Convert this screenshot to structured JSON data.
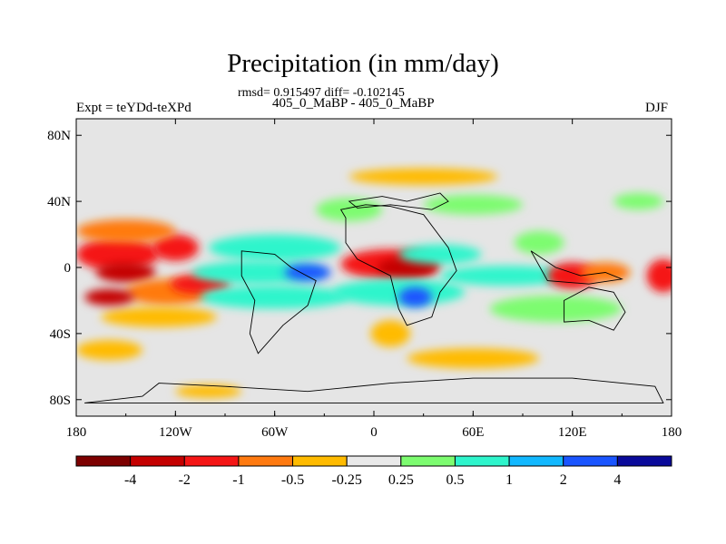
{
  "chart_data": {
    "type": "heatmap",
    "title": "Precipitation (in mm/day)",
    "stats_text": "rmsd= 0.915497 diff= -0.102145",
    "subtitle": "405_0_MaBP - 405_0_MaBP",
    "left_string": "Expt = teYDd-teXPd",
    "right_string": "DJF",
    "x_ticks": [
      {
        "value": -180,
        "label": "180"
      },
      {
        "value": -120,
        "label": "120W"
      },
      {
        "value": -60,
        "label": "60W"
      },
      {
        "value": 0,
        "label": "0"
      },
      {
        "value": 60,
        "label": "60E"
      },
      {
        "value": 120,
        "label": "120E"
      },
      {
        "value": 180,
        "label": "180"
      }
    ],
    "y_ticks": [
      {
        "value": 80,
        "label": "80N"
      },
      {
        "value": 40,
        "label": "40N"
      },
      {
        "value": 0,
        "label": "0"
      },
      {
        "value": -40,
        "label": "40S"
      },
      {
        "value": -80,
        "label": "80S"
      }
    ],
    "xlim": [
      -180,
      180
    ],
    "ylim": [
      -90,
      90
    ],
    "colorbar": {
      "levels": [
        {
          "label": "-4"
        },
        {
          "label": "-2"
        },
        {
          "label": "-1"
        },
        {
          "label": "-0.5"
        },
        {
          "label": "-0.25"
        },
        {
          "label": "0.25"
        },
        {
          "label": "0.5"
        },
        {
          "label": "1"
        },
        {
          "label": "2"
        },
        {
          "label": "4"
        }
      ],
      "colors": [
        "#7d0000",
        "#c40000",
        "#f51616",
        "#ff7a10",
        "#ffbb00",
        "#e9e9e9",
        "#7dfc70",
        "#2ef5cc",
        "#12b8ff",
        "#1a55ff",
        "#0a0a9a"
      ]
    },
    "background_color": "#e5e5e5",
    "blobs": [
      {
        "lon": -155,
        "lat": 8,
        "rlon": 25,
        "rlat": 10,
        "cls": 2
      },
      {
        "lon": -150,
        "lat": -3,
        "rlon": 18,
        "rlat": 6,
        "cls": 1
      },
      {
        "lon": -120,
        "lat": 12,
        "rlon": 14,
        "rlat": 8,
        "cls": 2
      },
      {
        "lon": -150,
        "lat": 22,
        "rlon": 30,
        "rlat": 7,
        "cls": 3
      },
      {
        "lon": -125,
        "lat": -15,
        "rlon": 25,
        "rlat": 8,
        "cls": 3
      },
      {
        "lon": -130,
        "lat": -30,
        "rlon": 35,
        "rlat": 6,
        "cls": 4
      },
      {
        "lon": -105,
        "lat": -10,
        "rlon": 18,
        "rlat": 6,
        "cls": 2
      },
      {
        "lon": -160,
        "lat": -18,
        "rlon": 15,
        "rlat": 5,
        "cls": 1
      },
      {
        "lon": -60,
        "lat": 12,
        "rlon": 40,
        "rlat": 8,
        "cls": 7
      },
      {
        "lon": -70,
        "lat": -3,
        "rlon": 40,
        "rlat": 7,
        "cls": 7
      },
      {
        "lon": -60,
        "lat": -18,
        "rlon": 45,
        "rlat": 7,
        "cls": 7
      },
      {
        "lon": -40,
        "lat": -3,
        "rlon": 14,
        "rlat": 5,
        "cls": 9
      },
      {
        "lon": -15,
        "lat": 35,
        "rlon": 20,
        "rlat": 7,
        "cls": 6
      },
      {
        "lon": 10,
        "lat": 2,
        "rlon": 30,
        "rlat": 9,
        "cls": 2
      },
      {
        "lon": 20,
        "lat": 0,
        "rlon": 18,
        "rlat": 6,
        "cls": 1
      },
      {
        "lon": 15,
        "lat": -15,
        "rlon": 40,
        "rlat": 8,
        "cls": 7
      },
      {
        "lon": 25,
        "lat": -18,
        "rlon": 10,
        "rlat": 6,
        "cls": 9
      },
      {
        "lon": 10,
        "lat": -40,
        "rlon": 12,
        "rlat": 8,
        "cls": 4
      },
      {
        "lon": 60,
        "lat": 38,
        "rlon": 30,
        "rlat": 6,
        "cls": 6
      },
      {
        "lon": 40,
        "lat": 8,
        "rlon": 25,
        "rlat": 6,
        "cls": 7
      },
      {
        "lon": 80,
        "lat": -5,
        "rlon": 40,
        "rlat": 6,
        "cls": 7
      },
      {
        "lon": 120,
        "lat": -5,
        "rlon": 15,
        "rlat": 8,
        "cls": 2
      },
      {
        "lon": 140,
        "lat": -3,
        "rlon": 15,
        "rlat": 6,
        "cls": 3
      },
      {
        "lon": 175,
        "lat": -5,
        "rlon": 10,
        "rlat": 10,
        "cls": 2
      },
      {
        "lon": 100,
        "lat": 15,
        "rlon": 15,
        "rlat": 7,
        "cls": 6
      },
      {
        "lon": 110,
        "lat": -25,
        "rlon": 40,
        "rlat": 8,
        "cls": 6
      },
      {
        "lon": 60,
        "lat": -55,
        "rlon": 40,
        "rlat": 6,
        "cls": 4
      },
      {
        "lon": 30,
        "lat": 55,
        "rlon": 45,
        "rlat": 5,
        "cls": 4
      },
      {
        "lon": -160,
        "lat": -50,
        "rlon": 20,
        "rlat": 6,
        "cls": 4
      },
      {
        "lon": -100,
        "lat": -75,
        "rlon": 20,
        "rlat": 4,
        "cls": 4
      },
      {
        "lon": 160,
        "lat": 40,
        "rlon": 15,
        "rlat": 5,
        "cls": 6
      }
    ]
  }
}
